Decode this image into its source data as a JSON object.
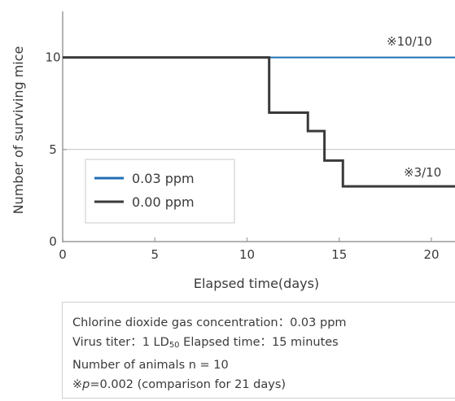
{
  "chart_data": {
    "type": "line",
    "step": true,
    "xlabel": "Elapsed time(days)",
    "ylabel": "Number of surviving mice",
    "xlim": [
      0,
      21.5
    ],
    "ylim": [
      0,
      12.5
    ],
    "x_ticks": [
      0,
      5,
      10,
      15,
      20
    ],
    "y_ticks": [
      0,
      5,
      10
    ],
    "grid": "horizontal lines at y = 5 and 10",
    "legend_placement": "lower-left",
    "series": [
      {
        "name": "0.03 ppm",
        "color": "#1f6fb5",
        "x": [
          0,
          21.5
        ],
        "y": [
          10,
          10
        ],
        "annotation": "※10/10"
      },
      {
        "name": "0.00 ppm",
        "color": "#3a3a3a",
        "x": [
          0,
          11.2,
          11.2,
          13.3,
          13.3,
          14.2,
          14.2,
          15.2,
          15.2,
          21.5
        ],
        "y": [
          10,
          10,
          7,
          7,
          6,
          6,
          4.4,
          4.4,
          3,
          3
        ],
        "annotation": "※3/10"
      }
    ]
  },
  "info": {
    "line1": "Chlorine dioxide gas concentration：0.03 ppm",
    "line2_pre": "Virus titer：1 LD",
    "line2_sub": "50",
    "line2_post": " Elapsed time：15 minutes",
    "line3": "Number of animals n = 10",
    "line4_mark": "※",
    "line4_p": "p",
    "line4_rest": "=0.002 (comparison for 21 days)"
  }
}
